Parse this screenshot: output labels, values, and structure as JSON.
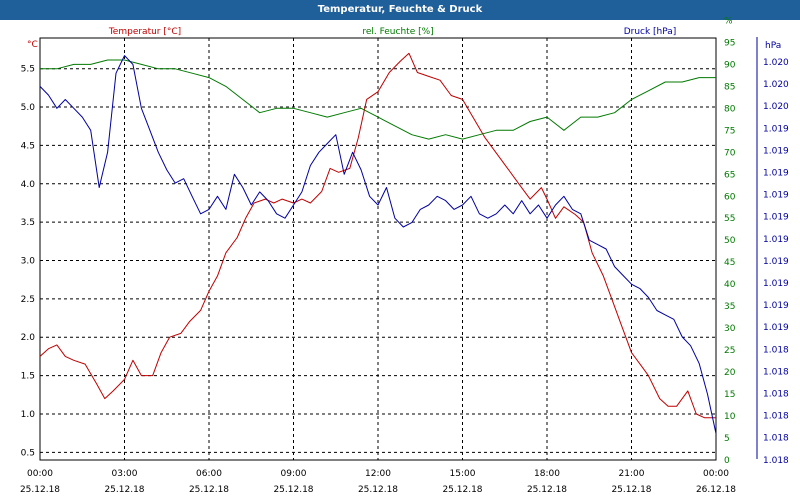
{
  "window": {
    "title": "Temperatur, Feuchte & Druck"
  },
  "colors": {
    "title_bar": "#1f5f9a",
    "temperature": "#c00000",
    "humidity": "#007a00",
    "pressure": "#0000a0",
    "grid": "#000000"
  },
  "chart_data": {
    "type": "line",
    "x_ticks": [
      {
        "time": "00:00",
        "date": "25.12.18"
      },
      {
        "time": "03:00",
        "date": "25.12.18"
      },
      {
        "time": "06:00",
        "date": "25.12.18"
      },
      {
        "time": "09:00",
        "date": "25.12.18"
      },
      {
        "time": "12:00",
        "date": "25.12.18"
      },
      {
        "time": "15:00",
        "date": "25.12.18"
      },
      {
        "time": "18:00",
        "date": "25.12.18"
      },
      {
        "time": "21:00",
        "date": "25.12.18"
      },
      {
        "time": "00:00",
        "date": "26.12.18"
      }
    ],
    "xlim_hours": [
      0,
      24
    ],
    "grid": true,
    "axes": {
      "temperature": {
        "label": "Temperatur [°C]",
        "unit": "°C",
        "color": "#c00000",
        "ylim": [
          0.4,
          5.9
        ],
        "ticks": [
          "0.5",
          "1.0",
          "1.5",
          "2.0",
          "2.5",
          "3.0",
          "3.5",
          "4.0",
          "4.5",
          "5.0",
          "5.5"
        ]
      },
      "humidity": {
        "label": "rel. Feuchte [%]",
        "unit": "%",
        "color": "#007a00",
        "ylim": [
          0,
          96
        ],
        "ticks": [
          "0",
          "5",
          "10",
          "15",
          "20",
          "25",
          "30",
          "35",
          "40",
          "45",
          "50",
          "55",
          "60",
          "65",
          "70",
          "75",
          "80",
          "85",
          "90",
          "95",
          "%"
        ]
      },
      "pressure": {
        "label": "Druck [hPa]",
        "unit": "hPa",
        "color": "#0000a0",
        "ticks": [
          "1.020",
          "1.020",
          "1.020",
          "1.019",
          "1.019",
          "1.019",
          "1.019",
          "1.019",
          "1.019",
          "1.019",
          "1.019",
          "1.019",
          "1.019",
          "1.018",
          "1.018",
          "1.018",
          "1.018",
          "1.018",
          "1.018"
        ]
      }
    },
    "series": [
      {
        "name": "Temperatur [°C]",
        "axis": "temperature",
        "x": [
          0,
          0.3,
          0.6,
          0.9,
          1.2,
          1.6,
          2.0,
          2.3,
          2.6,
          3.0,
          3.3,
          3.6,
          4.0,
          4.3,
          4.6,
          5.0,
          5.3,
          5.7,
          6.0,
          6.3,
          6.6,
          7.0,
          7.3,
          7.6,
          8.0,
          8.3,
          8.6,
          9.0,
          9.3,
          9.6,
          10.0,
          10.3,
          10.6,
          11.0,
          11.3,
          11.6,
          12.0,
          12.4,
          12.8,
          13.1,
          13.4,
          13.8,
          14.2,
          14.6,
          15.0,
          15.4,
          15.8,
          16.2,
          16.6,
          17.0,
          17.4,
          17.8,
          18.0,
          18.3,
          18.6,
          19.0,
          19.3,
          19.6,
          20.0,
          20.3,
          20.6,
          21.0,
          21.3,
          21.6,
          22.0,
          22.3,
          22.6,
          23.0,
          23.3,
          23.6,
          24.0
        ],
        "values": [
          1.75,
          1.85,
          1.9,
          1.75,
          1.7,
          1.65,
          1.4,
          1.2,
          1.3,
          1.45,
          1.7,
          1.5,
          1.5,
          1.8,
          2.0,
          2.05,
          2.2,
          2.35,
          2.6,
          2.8,
          3.1,
          3.3,
          3.55,
          3.75,
          3.8,
          3.75,
          3.8,
          3.75,
          3.8,
          3.75,
          3.9,
          4.2,
          4.15,
          4.2,
          4.6,
          5.1,
          5.2,
          5.45,
          5.6,
          5.7,
          5.45,
          5.4,
          5.35,
          5.15,
          5.1,
          4.85,
          4.6,
          4.4,
          4.2,
          4.0,
          3.8,
          3.95,
          3.8,
          3.55,
          3.7,
          3.6,
          3.5,
          3.1,
          2.8,
          2.5,
          2.2,
          1.8,
          1.65,
          1.5,
          1.2,
          1.1,
          1.1,
          1.3,
          1.0,
          0.95,
          0.95
        ]
      },
      {
        "name": "rel. Feuchte [%]",
        "axis": "humidity",
        "x": [
          0,
          0.6,
          1.2,
          1.8,
          2.4,
          3.0,
          3.6,
          4.2,
          4.8,
          5.4,
          6.0,
          6.6,
          7.2,
          7.8,
          8.4,
          9.0,
          9.6,
          10.2,
          10.8,
          11.4,
          12.0,
          12.6,
          13.2,
          13.8,
          14.4,
          15.0,
          15.6,
          16.2,
          16.8,
          17.4,
          18.0,
          18.6,
          19.2,
          19.8,
          20.4,
          21.0,
          21.6,
          22.2,
          22.8,
          23.4,
          24.0
        ],
        "values": [
          89,
          89,
          90,
          90,
          91,
          91,
          90,
          89,
          89,
          88,
          87,
          85,
          82,
          79,
          80,
          80,
          79,
          78,
          79,
          80,
          78,
          76,
          74,
          73,
          74,
          73,
          74,
          75,
          75,
          77,
          78,
          75,
          78,
          78,
          79,
          82,
          84,
          86,
          86,
          87,
          87
        ]
      },
      {
        "name": "Druck [hPa]",
        "axis": "pressure",
        "x": [
          0,
          0.3,
          0.6,
          0.9,
          1.2,
          1.5,
          1.8,
          2.1,
          2.4,
          2.7,
          3.0,
          3.3,
          3.6,
          3.9,
          4.2,
          4.5,
          4.8,
          5.1,
          5.4,
          5.7,
          6.0,
          6.3,
          6.6,
          6.9,
          7.2,
          7.5,
          7.8,
          8.1,
          8.4,
          8.7,
          9.0,
          9.3,
          9.6,
          9.9,
          10.2,
          10.5,
          10.8,
          11.1,
          11.4,
          11.7,
          12.0,
          12.3,
          12.6,
          12.9,
          13.2,
          13.5,
          13.8,
          14.1,
          14.4,
          14.7,
          15.0,
          15.3,
          15.6,
          15.9,
          16.2,
          16.5,
          16.8,
          17.1,
          17.4,
          17.7,
          18.0,
          18.3,
          18.6,
          18.9,
          19.2,
          19.5,
          19.8,
          20.1,
          20.4,
          20.7,
          21.0,
          21.3,
          21.6,
          21.9,
          22.2,
          22.5,
          22.8,
          23.1,
          23.4,
          23.7,
          24.0
        ],
        "values": [
          85,
          83,
          80,
          82,
          80,
          78,
          75,
          62,
          70,
          88,
          92,
          90,
          80,
          75,
          70,
          66,
          63,
          64,
          60,
          56,
          57,
          60,
          57,
          65,
          62,
          58,
          61,
          59,
          56,
          55,
          58,
          61,
          67,
          70,
          72,
          74,
          65,
          70,
          66,
          60,
          58,
          62,
          55,
          53,
          54,
          57,
          58,
          60,
          59,
          57,
          58,
          60,
          56,
          55,
          56,
          58,
          56,
          59,
          56,
          58,
          55,
          58,
          60,
          57,
          56,
          50,
          49,
          48,
          44,
          42,
          40,
          39,
          37,
          34,
          33,
          32,
          28,
          26,
          22,
          15,
          6
        ]
      }
    ]
  }
}
